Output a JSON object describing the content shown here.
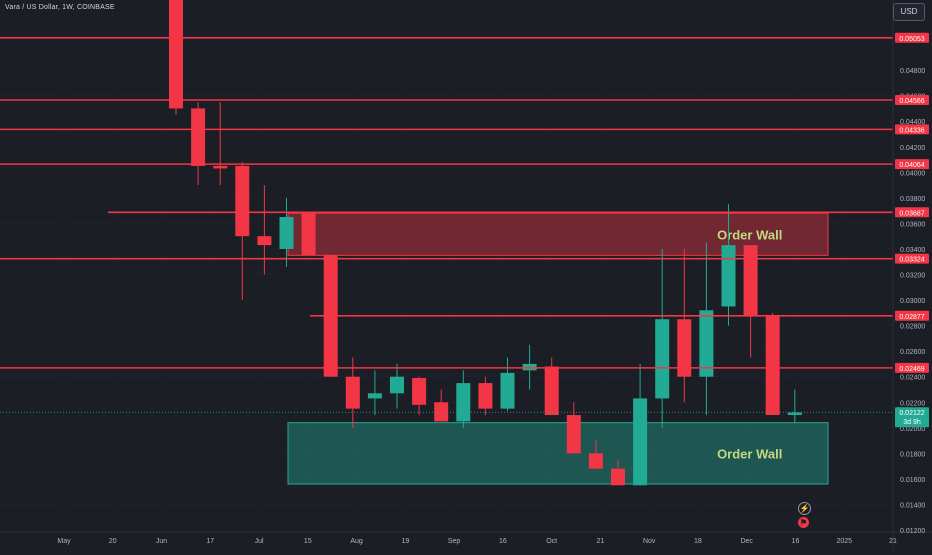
{
  "header": {
    "symbol_title": "Vara / US Dollar, 1W, COINBASE",
    "currency": "USD"
  },
  "icons": {
    "flash": "lightning-icon",
    "flag": "flag-icon"
  },
  "colors": {
    "background": "#1c1e26",
    "bull": "#22ab94",
    "bear": "#f23645",
    "grid": "#2a2e39",
    "axis_text": "#b2b5be",
    "order_wall_text": "#c6d784"
  },
  "chart_data": {
    "type": "candlestick",
    "ylim": [
      0.012,
      0.052
    ],
    "y_ticks": [
      "0.05060",
      "0.04800",
      "0.04600",
      "0.04400",
      "0.04200",
      "0.04000",
      "0.03800",
      "0.03600",
      "0.03400",
      "0.03200",
      "0.03000",
      "0.02800",
      "0.02600",
      "0.02400",
      "0.02200",
      "0.02000",
      "0.01800",
      "0.01600",
      "0.01400",
      "0.01200"
    ],
    "x_labels": [
      "May",
      "20",
      "Jun",
      "17",
      "Jul",
      "15",
      "Aug",
      "19",
      "Sep",
      "16",
      "Oct",
      "21",
      "Nov",
      "18",
      "Dec",
      "16",
      "2025",
      "21"
    ],
    "candles": [
      {
        "o": 0.056,
        "h": 0.056,
        "l": 0.0445,
        "c": 0.045
      },
      {
        "o": 0.045,
        "h": 0.0455,
        "l": 0.039,
        "c": 0.0405
      },
      {
        "o": 0.0405,
        "h": 0.0455,
        "l": 0.039,
        "c": 0.0403
      },
      {
        "o": 0.0405,
        "h": 0.0408,
        "l": 0.03,
        "c": 0.035
      },
      {
        "o": 0.035,
        "h": 0.039,
        "l": 0.032,
        "c": 0.0343
      },
      {
        "o": 0.034,
        "h": 0.038,
        "l": 0.0326,
        "c": 0.0365
      },
      {
        "o": 0.0368,
        "h": 0.0368,
        "l": 0.0335,
        "c": 0.0335
      },
      {
        "o": 0.0335,
        "h": 0.0335,
        "l": 0.024,
        "c": 0.024
      },
      {
        "o": 0.024,
        "h": 0.0255,
        "l": 0.02,
        "c": 0.0215
      },
      {
        "o": 0.0223,
        "h": 0.0245,
        "l": 0.021,
        "c": 0.0227
      },
      {
        "o": 0.0227,
        "h": 0.025,
        "l": 0.0215,
        "c": 0.024
      },
      {
        "o": 0.0239,
        "h": 0.024,
        "l": 0.021,
        "c": 0.0218
      },
      {
        "o": 0.022,
        "h": 0.023,
        "l": 0.0205,
        "c": 0.0205
      },
      {
        "o": 0.0205,
        "h": 0.0245,
        "l": 0.02,
        "c": 0.0235
      },
      {
        "o": 0.0235,
        "h": 0.024,
        "l": 0.021,
        "c": 0.0215
      },
      {
        "o": 0.0215,
        "h": 0.0255,
        "l": 0.0213,
        "c": 0.0243
      },
      {
        "o": 0.0245,
        "h": 0.0265,
        "l": 0.023,
        "c": 0.025
      },
      {
        "o": 0.0248,
        "h": 0.0255,
        "l": 0.021,
        "c": 0.021
      },
      {
        "o": 0.021,
        "h": 0.022,
        "l": 0.018,
        "c": 0.018
      },
      {
        "o": 0.018,
        "h": 0.019,
        "l": 0.017,
        "c": 0.0168
      },
      {
        "o": 0.0168,
        "h": 0.0175,
        "l": 0.0155,
        "c": 0.0155
      },
      {
        "o": 0.0155,
        "h": 0.025,
        "l": 0.0155,
        "c": 0.0223
      },
      {
        "o": 0.0223,
        "h": 0.034,
        "l": 0.02,
        "c": 0.0285
      },
      {
        "o": 0.0285,
        "h": 0.034,
        "l": 0.022,
        "c": 0.024
      },
      {
        "o": 0.024,
        "h": 0.0345,
        "l": 0.021,
        "c": 0.0292
      },
      {
        "o": 0.0295,
        "h": 0.0375,
        "l": 0.028,
        "c": 0.0343
      },
      {
        "o": 0.0343,
        "h": 0.0343,
        "l": 0.0255,
        "c": 0.0288
      },
      {
        "o": 0.0288,
        "h": 0.029,
        "l": 0.021,
        "c": 0.021
      },
      {
        "o": 0.021,
        "h": 0.023,
        "l": 0.0204,
        "c": 0.0212
      }
    ],
    "horizontal_lines": [
      {
        "value": 0.05053,
        "label": "0.05053"
      },
      {
        "value": 0.04566,
        "label": "0.04566"
      },
      {
        "value": 0.04336,
        "label": "0.04336"
      },
      {
        "value": 0.04064,
        "label": "0.04064"
      },
      {
        "value": 0.03687,
        "label": "0.03687"
      },
      {
        "value": 0.03324,
        "label": "0.03324"
      },
      {
        "value": 0.02877,
        "label": "0.02877"
      },
      {
        "value": 0.02469,
        "label": "0.02469"
      }
    ],
    "current_price": {
      "value": 0.02122,
      "label": "0.02122",
      "countdown": "3d 9h"
    },
    "zones": [
      {
        "label": "Order Wall",
        "y_top": 0.0368,
        "y_bottom": 0.0335,
        "color": "#f23645"
      },
      {
        "label": "Order Wall",
        "y_top": 0.0204,
        "y_bottom": 0.0156,
        "color": "#22ab94"
      }
    ]
  }
}
